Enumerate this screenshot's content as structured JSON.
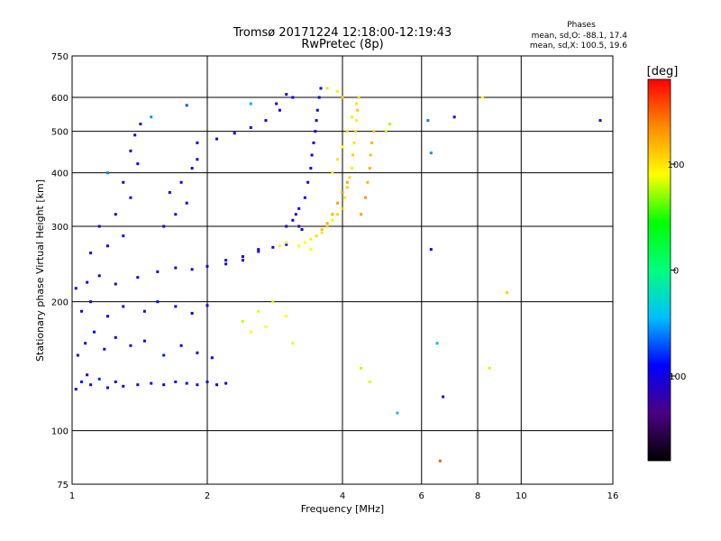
{
  "header": {
    "title": "Tromsø 20171224 12:18:00-12:19:43",
    "subtitle": "RwPretec (8p)"
  },
  "stats": {
    "label": "Phases",
    "line_o": "mean, sd,O: -88.1, 17.4",
    "line_x": "mean, sd,X: 100.5, 19.6"
  },
  "chart_data": {
    "type": "scatter",
    "xlabel": "Frequency [MHz]",
    "ylabel": "Stationary phase Virtual Height [km]",
    "xscale": "log",
    "yscale": "log",
    "xlim": [
      1,
      16
    ],
    "ylim": [
      75,
      750
    ],
    "xticks": [
      1,
      2,
      4,
      6,
      8,
      10,
      16
    ],
    "yticks": [
      75,
      100,
      200,
      300,
      400,
      500,
      600,
      750
    ],
    "xgrid": [
      1,
      2,
      4,
      6,
      8,
      10,
      16
    ],
    "ygrid": [
      100,
      200,
      300,
      400,
      500,
      600
    ],
    "grid": true,
    "colorbar": {
      "label": "[deg]",
      "range": [
        -180,
        180
      ],
      "ticks": [
        -100,
        0,
        100
      ],
      "colormap": [
        "#000000",
        "#4b0082",
        "#0000ff",
        "#00bfff",
        "#00ff7f",
        "#00ff00",
        "#ffff00",
        "#ff8c00",
        "#ff0000"
      ]
    },
    "series": [
      {
        "mode": "O",
        "points": [
          [
            1.02,
            125,
            -100
          ],
          [
            1.05,
            130,
            -90
          ],
          [
            1.08,
            135,
            -110
          ],
          [
            1.1,
            128,
            -95
          ],
          [
            1.15,
            132,
            -80
          ],
          [
            1.2,
            126,
            -105
          ],
          [
            1.25,
            130,
            -98
          ],
          [
            1.3,
            127,
            -92
          ],
          [
            1.4,
            128,
            -100
          ],
          [
            1.5,
            129,
            -88
          ],
          [
            1.6,
            128,
            -95
          ],
          [
            1.7,
            130,
            -102
          ],
          [
            1.8,
            129,
            -90
          ],
          [
            1.9,
            128,
            -97
          ],
          [
            2.0,
            130,
            -100
          ],
          [
            2.1,
            128,
            -93
          ],
          [
            2.2,
            129,
            -99
          ],
          [
            1.03,
            150,
            -95
          ],
          [
            1.07,
            160,
            -100
          ],
          [
            1.12,
            170,
            -88
          ],
          [
            1.18,
            155,
            -102
          ],
          [
            1.25,
            165,
            -96
          ],
          [
            1.35,
            158,
            -91
          ],
          [
            1.45,
            162,
            -99
          ],
          [
            1.6,
            150,
            -85
          ],
          [
            1.75,
            158,
            -97
          ],
          [
            1.9,
            152,
            -103
          ],
          [
            2.05,
            148,
            -92
          ],
          [
            1.05,
            190,
            -98
          ],
          [
            1.1,
            200,
            -104
          ],
          [
            1.2,
            185,
            -90
          ],
          [
            1.3,
            195,
            -95
          ],
          [
            1.45,
            190,
            -100
          ],
          [
            1.55,
            200,
            -88
          ],
          [
            1.7,
            195,
            -96
          ],
          [
            1.85,
            188,
            -101
          ],
          [
            2.0,
            196,
            -94
          ],
          [
            1.02,
            215,
            -97
          ],
          [
            1.08,
            222,
            -92
          ],
          [
            1.15,
            230,
            -100
          ],
          [
            1.25,
            220,
            -105
          ],
          [
            1.4,
            228,
            -90
          ],
          [
            1.55,
            235,
            -98
          ],
          [
            1.7,
            240,
            -95
          ],
          [
            1.85,
            238,
            -101
          ],
          [
            2.0,
            242,
            -93
          ],
          [
            2.2,
            250,
            -99
          ],
          [
            2.4,
            255,
            -96
          ],
          [
            2.6,
            262,
            -92
          ],
          [
            2.8,
            268,
            -98
          ],
          [
            3.0,
            272,
            -100
          ],
          [
            1.1,
            260,
            -95
          ],
          [
            1.2,
            270,
            -102
          ],
          [
            1.3,
            285,
            -90
          ],
          [
            1.15,
            300,
            -97
          ],
          [
            1.25,
            320,
            -100
          ],
          [
            1.35,
            350,
            -93
          ],
          [
            1.3,
            380,
            -99
          ],
          [
            1.4,
            420,
            -95
          ],
          [
            1.35,
            450,
            -101
          ],
          [
            1.38,
            490,
            -92
          ],
          [
            1.42,
            520,
            -98
          ],
          [
            1.9,
            470,
            -96
          ],
          [
            2.1,
            480,
            -99
          ],
          [
            2.3,
            495,
            -94
          ],
          [
            2.5,
            510,
            -100
          ],
          [
            2.7,
            530,
            -92
          ],
          [
            2.9,
            560,
            -97
          ],
          [
            3.1,
            600,
            -95
          ],
          [
            3.0,
            610,
            -102
          ],
          [
            2.85,
            580,
            -98
          ],
          [
            3.2,
            330,
            -95
          ],
          [
            3.3,
            350,
            -99
          ],
          [
            3.35,
            380,
            -92
          ],
          [
            3.4,
            410,
            -100
          ],
          [
            3.42,
            440,
            -96
          ],
          [
            3.45,
            470,
            -101
          ],
          [
            3.48,
            500,
            -94
          ],
          [
            3.5,
            530,
            -98
          ],
          [
            3.52,
            560,
            -95
          ],
          [
            3.55,
            600,
            -99
          ],
          [
            3.58,
            630,
            -93
          ],
          [
            3.0,
            300,
            -97
          ],
          [
            3.1,
            310,
            -100
          ],
          [
            3.15,
            320,
            -115
          ],
          [
            3.2,
            300,
            -120
          ],
          [
            3.25,
            295,
            -90
          ],
          [
            2.6,
            265,
            -98
          ],
          [
            2.4,
            250,
            -95
          ],
          [
            2.2,
            245,
            -100
          ],
          [
            1.6,
            300,
            -93
          ],
          [
            1.7,
            320,
            -99
          ],
          [
            1.8,
            340,
            -96
          ],
          [
            1.65,
            360,
            -101
          ],
          [
            1.75,
            380,
            -94
          ],
          [
            1.85,
            410,
            -98
          ],
          [
            1.9,
            430,
            -95
          ],
          [
            1.2,
            400,
            -60
          ],
          [
            1.5,
            540,
            -55
          ],
          [
            1.8,
            575,
            -70
          ],
          [
            2.5,
            580,
            -50
          ],
          [
            6.2,
            530,
            -60
          ],
          [
            6.3,
            445,
            -55
          ],
          [
            6.3,
            265,
            -100
          ],
          [
            6.5,
            160,
            -45
          ],
          [
            7.1,
            540,
            -95
          ],
          [
            15.0,
            530,
            -100
          ],
          [
            6.7,
            120,
            -100
          ],
          [
            5.3,
            110,
            -40
          ]
        ]
      },
      {
        "mode": "X",
        "points": [
          [
            3.6,
            290,
            100
          ],
          [
            3.7,
            300,
            110
          ],
          [
            3.8,
            310,
            95
          ],
          [
            3.9,
            320,
            105
          ],
          [
            4.0,
            330,
            112
          ],
          [
            4.05,
            350,
            98
          ],
          [
            4.1,
            370,
            108
          ],
          [
            4.15,
            390,
            102
          ],
          [
            4.2,
            410,
            95
          ],
          [
            4.22,
            440,
            110
          ],
          [
            4.25,
            470,
            100
          ],
          [
            4.28,
            500,
            105
          ],
          [
            4.3,
            530,
            97
          ],
          [
            4.32,
            560,
            112
          ],
          [
            4.35,
            600,
            103
          ],
          [
            3.3,
            275,
            90
          ],
          [
            3.4,
            280,
            98
          ],
          [
            3.5,
            285,
            104
          ],
          [
            3.6,
            295,
            115
          ],
          [
            3.7,
            305,
            120
          ],
          [
            3.8,
            320,
            118
          ],
          [
            3.9,
            340,
            125
          ],
          [
            4.0,
            360,
            130
          ],
          [
            4.1,
            380,
            122
          ],
          [
            4.4,
            320,
            125
          ],
          [
            4.5,
            350,
            130
          ],
          [
            4.55,
            380,
            118
          ],
          [
            4.6,
            410,
            122
          ],
          [
            4.62,
            440,
            115
          ],
          [
            4.65,
            470,
            120
          ],
          [
            4.7,
            500,
            110
          ],
          [
            3.8,
            400,
            95
          ],
          [
            3.9,
            430,
            100
          ],
          [
            4.0,
            460,
            90
          ],
          [
            4.1,
            500,
            105
          ],
          [
            4.2,
            540,
            98
          ],
          [
            4.3,
            580,
            102
          ],
          [
            4.0,
            600,
            110
          ],
          [
            3.4,
            265,
            88
          ],
          [
            3.2,
            270,
            92
          ],
          [
            3.0,
            275,
            85
          ],
          [
            2.9,
            270,
            95
          ],
          [
            2.4,
            180,
            80
          ],
          [
            2.5,
            170,
            90
          ],
          [
            2.6,
            190,
            85
          ],
          [
            2.7,
            175,
            88
          ],
          [
            2.8,
            200,
            82
          ],
          [
            3.0,
            185,
            92
          ],
          [
            3.1,
            160,
            86
          ],
          [
            4.4,
            140,
            78
          ],
          [
            4.6,
            130,
            85
          ],
          [
            5.0,
            500,
            80
          ],
          [
            5.1,
            520,
            75
          ],
          [
            8.2,
            600,
            90
          ],
          [
            8.5,
            140,
            100
          ],
          [
            9.3,
            210,
            110
          ],
          [
            6.6,
            85,
            150
          ],
          [
            3.9,
            620,
            95
          ],
          [
            3.7,
            630,
            100
          ]
        ]
      }
    ]
  }
}
